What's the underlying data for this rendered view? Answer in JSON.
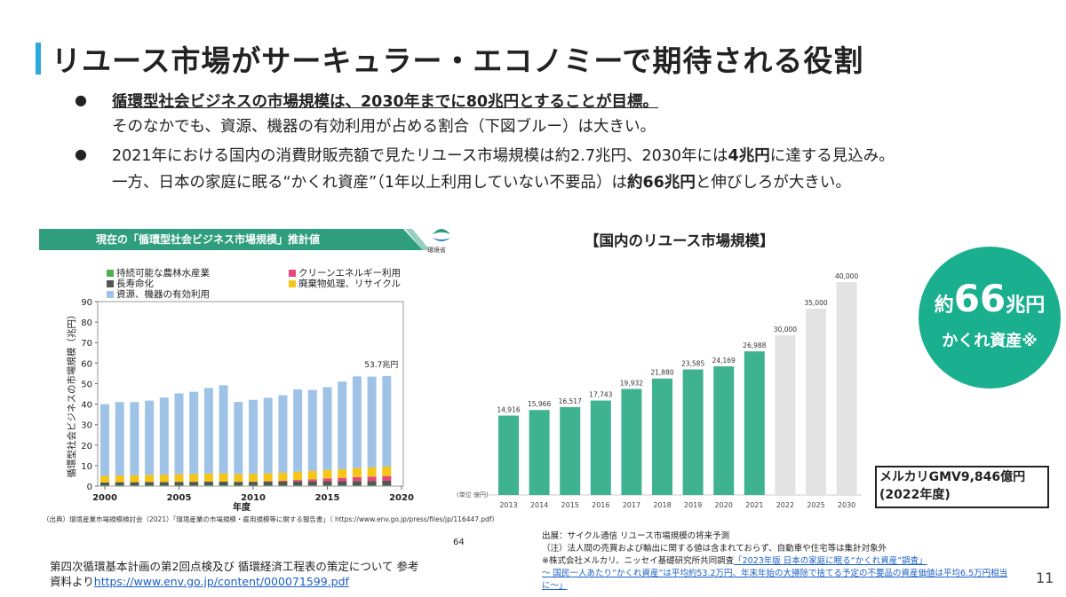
{
  "title": "リユース市場がサーキュラー・エコノミーで期待される役割",
  "bullets": [
    {
      "marker": "●",
      "line1": "循環型社会ビジネスの市場規模は、2030年までに80兆円とすることが目標。",
      "line2": "そのなかでも、資源、機器の有効利用が占める割合（下図ブルー）は大きい。"
    },
    {
      "marker": "●",
      "line1_a": "2021年における国内の消費財販売額で見たリユース市場規模は約2.7兆円、2030年には",
      "line1_b": "4兆円",
      "line1_c": "に達する見込み。",
      "line2_a": "一方、日本の家庭に眠る“かくれ資産”（1年以上利用していない不要品）は",
      "line2_b": "約66兆円",
      "line2_c": "と伸びしろが大きい。"
    }
  ],
  "left_chart": {
    "banner": "現在の「循環型社会ビジネス市場規模」推計値",
    "logo_text": "環境省",
    "source": "（出典）環境産業市場規模検討会（2021）「環境産業の市場規模・雇用規模等に関する報告書」（ https://www.env.go.jp/press/files/jp/116447.pdf）",
    "page": "64"
  },
  "left_ref": {
    "line1": "第四次循環基本計画の第2回点検及び 循環経済工程表の策定について 参考",
    "line2_prefix": "資料より",
    "link": "https://www.env.go.jp/content/000071599.pdf"
  },
  "right_chart_title": "【国内のリユース市場規模】",
  "right_chart_unit": "(単位 億円)",
  "circle": {
    "prefix": "約",
    "number": "66",
    "suffix": "兆円",
    "sub": "かくれ資産※"
  },
  "mercari_box": {
    "line1": "メルカリGMV9,846億円",
    "line2": "(2022年度)"
  },
  "notes": {
    "n1": "出展：サイクル通信 リユース市場規模の将来予測",
    "n2": "（注）法人間の売買および輸出に関する値は含まれておらず、自動車や住宅等は集計対象外",
    "n3_prefix": "※株式会社メルカリ、ニッセイ基礎研究所共同調査",
    "n3_link": "「2023年版 日本の家庭に眠る“かくれ資産”調査」",
    "n4": "～ 国民一人あたり“かくれ資産”は平均約53.2万円、年末年始の大掃除で捨てる予定の不要品の資産価値は平均6.5万円相当",
    "n5": "に～」"
  },
  "page_number": "11",
  "colors": {
    "accent": "#29a9e0",
    "teal": "#1aaf8f",
    "bar_actual": "#3fb38f",
    "bar_forecast": "#e3e3e3",
    "banner": "#2f9e7f",
    "link": "#1a5fc7"
  },
  "chart_data": [
    {
      "type": "bar",
      "stacked": true,
      "ylabel": "循環型社会ビジネスの市場規模（兆円）",
      "xlabel": "年度",
      "ylim": [
        0,
        90
      ],
      "y_ticks": [
        0,
        10,
        20,
        30,
        40,
        50,
        60,
        70,
        80,
        90
      ],
      "x_ticks": [
        2000,
        2005,
        2010,
        2015,
        2020
      ],
      "x": [
        2000,
        2001,
        2002,
        2003,
        2004,
        2005,
        2006,
        2007,
        2008,
        2009,
        2010,
        2011,
        2012,
        2013,
        2014,
        2015,
        2016,
        2017,
        2018,
        2019
      ],
      "series": [
        {
          "name": "持続可能な農林水産業",
          "color": "#4caf50",
          "values": [
            0.3,
            0.3,
            0.3,
            0.3,
            0.3,
            0.3,
            0.3,
            0.3,
            0.3,
            0.3,
            0.3,
            0.3,
            0.3,
            0.3,
            0.3,
            0.3,
            0.3,
            0.3,
            0.3,
            0.3
          ]
        },
        {
          "name": "クリーンエネルギー利用",
          "color": "#e8467c",
          "values": [
            0,
            0,
            0,
            0,
            0,
            0,
            0,
            0,
            0,
            0,
            0.1,
            0.2,
            0.4,
            0.7,
            1.0,
            1.3,
            1.6,
            1.9,
            2.1,
            2.3
          ]
        },
        {
          "name": "長寿命化",
          "color": "#555555",
          "values": [
            1.5,
            1.6,
            1.6,
            1.7,
            1.7,
            1.8,
            1.8,
            1.9,
            1.9,
            1.8,
            1.8,
            1.9,
            1.9,
            2.0,
            2.0,
            2.1,
            2.1,
            2.2,
            2.2,
            2.3
          ]
        },
        {
          "name": "廃棄物処理、リサイクル",
          "color": "#f5c518",
          "values": [
            3.2,
            3.3,
            3.4,
            3.5,
            3.6,
            3.7,
            3.8,
            3.9,
            4.0,
            3.7,
            3.8,
            3.8,
            3.9,
            4.0,
            4.1,
            4.2,
            4.3,
            4.4,
            4.5,
            4.6
          ]
        },
        {
          "name": "資源、機器の有効利用",
          "color": "#9fc3e7",
          "values": [
            35.0,
            35.8,
            35.7,
            36.2,
            37.6,
            39.4,
            40.1,
            41.8,
            43.0,
            35.3,
            36.1,
            36.9,
            37.8,
            40.2,
            39.5,
            40.4,
            42.7,
            44.7,
            44.3,
            44.2
          ]
        }
      ],
      "annotation": "53.7兆円"
    },
    {
      "type": "bar",
      "categories": [
        "2013",
        "2014",
        "2015",
        "2016",
        "2017",
        "2018",
        "2019",
        "2020",
        "2021",
        "2022",
        "2025",
        "2030"
      ],
      "values": [
        14916,
        15966,
        16517,
        17743,
        19932,
        21880,
        23585,
        24169,
        26988,
        30000,
        35000,
        40000
      ],
      "labels": [
        "14,916",
        "15,966",
        "16,517",
        "17,743",
        "19,932",
        "21,880",
        "23,585",
        "24,169",
        "26,988",
        "30,000",
        "35,000",
        "40,000"
      ],
      "forecast_from_index": 9,
      "ylim": [
        0,
        40000
      ]
    }
  ]
}
